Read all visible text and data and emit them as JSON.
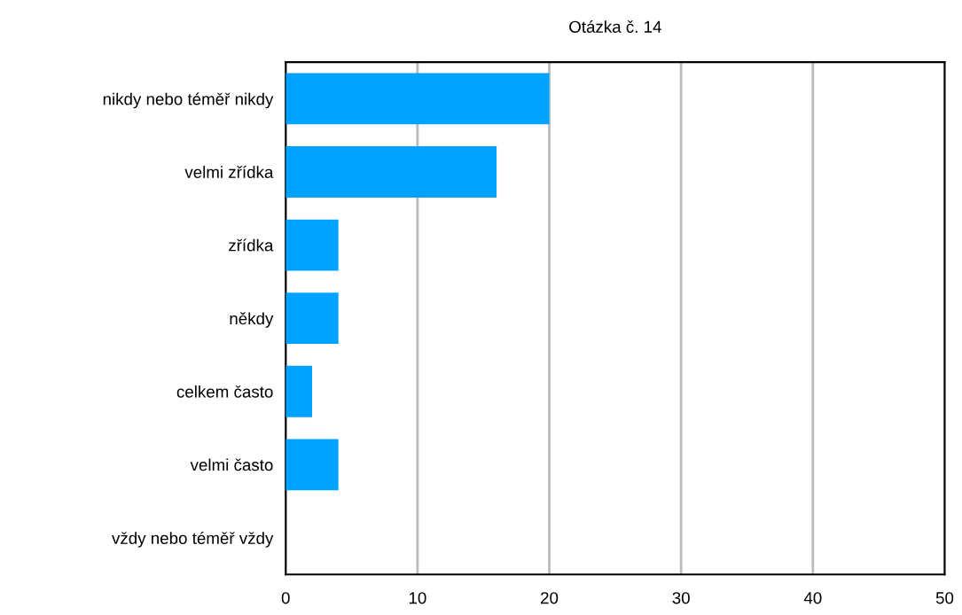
{
  "chart_data": {
    "type": "bar",
    "orientation": "horizontal",
    "title": "Otázka č. 14",
    "categories": [
      "nikdy nebo téměř nikdy",
      "velmi zřídka",
      "zřídka",
      "někdy",
      "celkem často",
      "velmi často",
      "vždy nebo téměř vždy"
    ],
    "values": [
      20,
      16,
      4,
      4,
      2,
      4,
      0
    ],
    "color": "#00a2ff",
    "xlim": [
      0,
      50
    ],
    "xticks": [
      0,
      10,
      20,
      30,
      40,
      50
    ],
    "grid": "x"
  }
}
